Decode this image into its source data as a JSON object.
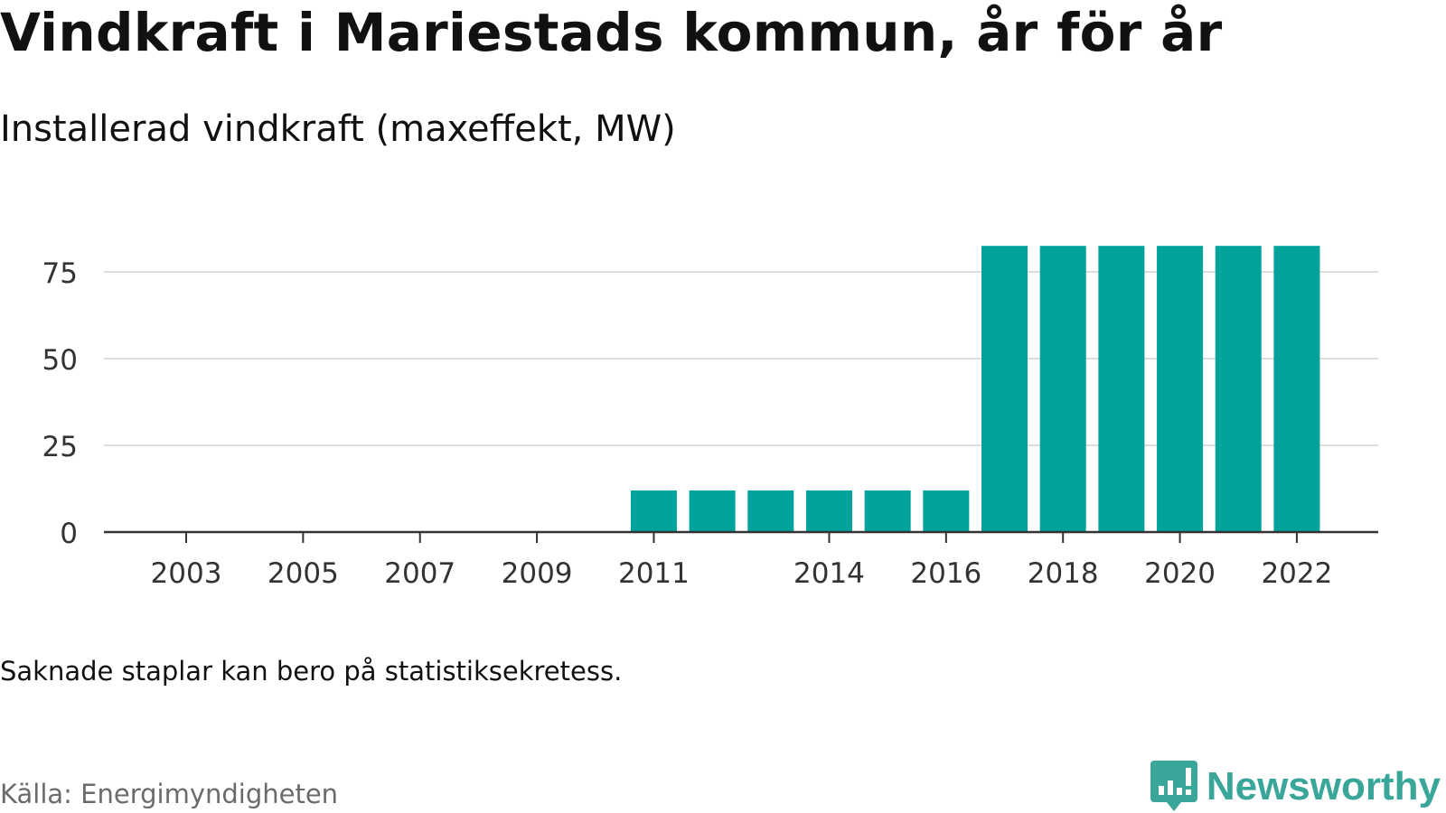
{
  "title": "Vindkraft i Mariestads kommun, år för år",
  "subtitle": "Installerad vindkraft (maxeffekt, MW)",
  "note": "Saknade staplar kan bero på statistiksekretess.",
  "source": "Källa: Energimyndigheten",
  "brand": {
    "name": "Newsworthy",
    "icon": "bar-chart-speech-icon"
  },
  "colors": {
    "bar": "#00a39b",
    "grid": "#dddddd",
    "axis": "#333333",
    "brand": "#3aa69a",
    "source": "#6b6b6b"
  },
  "chart_data": {
    "type": "bar",
    "title": "Vindkraft i Mariestads kommun, år för år",
    "subtitle": "Installerad vindkraft (maxeffekt, MW)",
    "xlabel": "",
    "ylabel": "",
    "categories": [
      "2003",
      "2004",
      "2005",
      "2006",
      "2007",
      "2008",
      "2009",
      "2010",
      "2011",
      "2012",
      "2013",
      "2014",
      "2015",
      "2016",
      "2017",
      "2018",
      "2019",
      "2020",
      "2021",
      "2022"
    ],
    "values": [
      0,
      0,
      0,
      0,
      0,
      0,
      0,
      0,
      12,
      12,
      12,
      12,
      12,
      12,
      82.5,
      82.5,
      82.5,
      82.5,
      82.5,
      82.5
    ],
    "x_tick_labels": [
      "2003",
      "2005",
      "2007",
      "2009",
      "2011",
      "2014",
      "2016",
      "2018",
      "2020",
      "2022"
    ],
    "y_ticks": [
      0,
      25,
      50,
      75
    ],
    "ylim": [
      0,
      85
    ],
    "grid": true,
    "legend": "none"
  }
}
